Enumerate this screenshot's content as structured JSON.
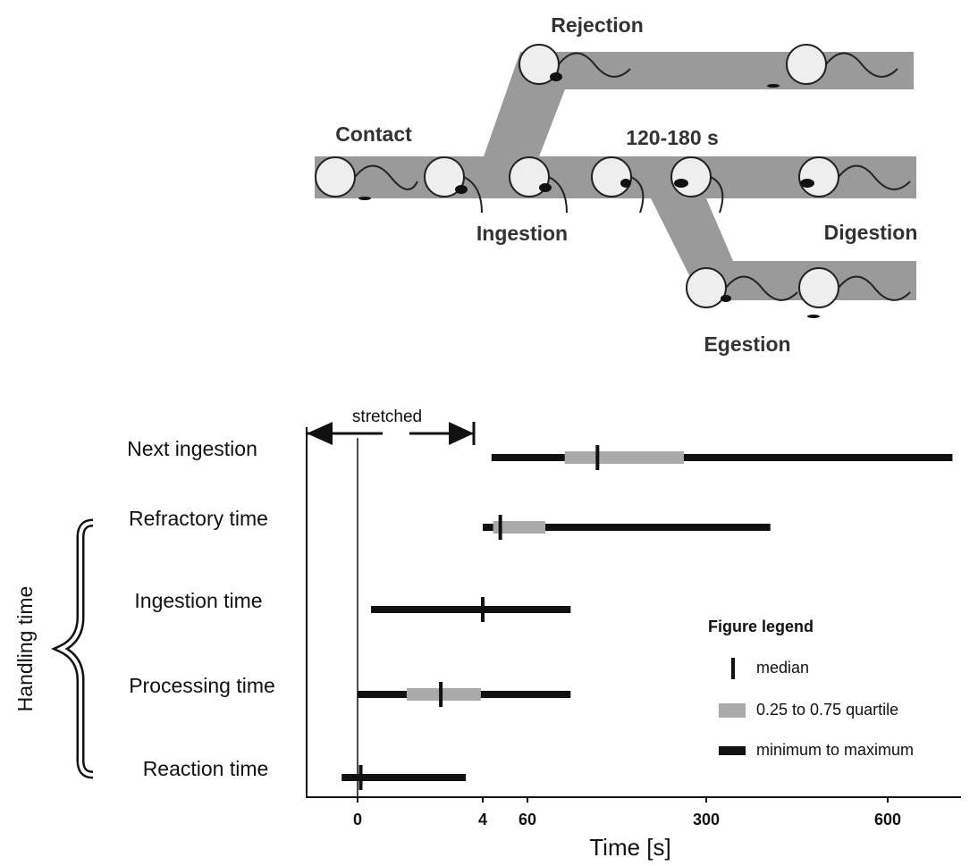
{
  "diagram": {
    "labels": [
      "Rejection",
      "Contact",
      "120-180 s",
      "Ingestion",
      "Digestion",
      "Egestion"
    ]
  },
  "chart_data": {
    "type": "range",
    "categories": [
      "Next ingestion",
      "Refractory time",
      "Ingestion time",
      "Processing time",
      "Reaction time"
    ],
    "min": [
      15,
      4,
      0.43,
      0,
      -0.5
    ],
    "q1": [
      110,
      17,
      null,
      1.57,
      null
    ],
    "median": [
      154,
      26,
      4,
      2.66,
      0.1
    ],
    "q3": [
      270,
      84,
      null,
      3.94,
      null
    ],
    "max": [
      706,
      406,
      118,
      118,
      3.46
    ],
    "range_color": "#111",
    "box_color": "#aaaaaa",
    "median_color": "#111",
    "xlim": [
      -1.6,
      720
    ],
    "xticks": [
      0,
      4,
      60,
      300,
      600
    ],
    "xlabel": "Time [s]",
    "annotations": [
      "stretched",
      "Handling time"
    ],
    "legend_title": "Figure legend",
    "legend_items": [
      "median",
      "0.25 to 0.75 quartile",
      "minimum to maximum"
    ]
  }
}
